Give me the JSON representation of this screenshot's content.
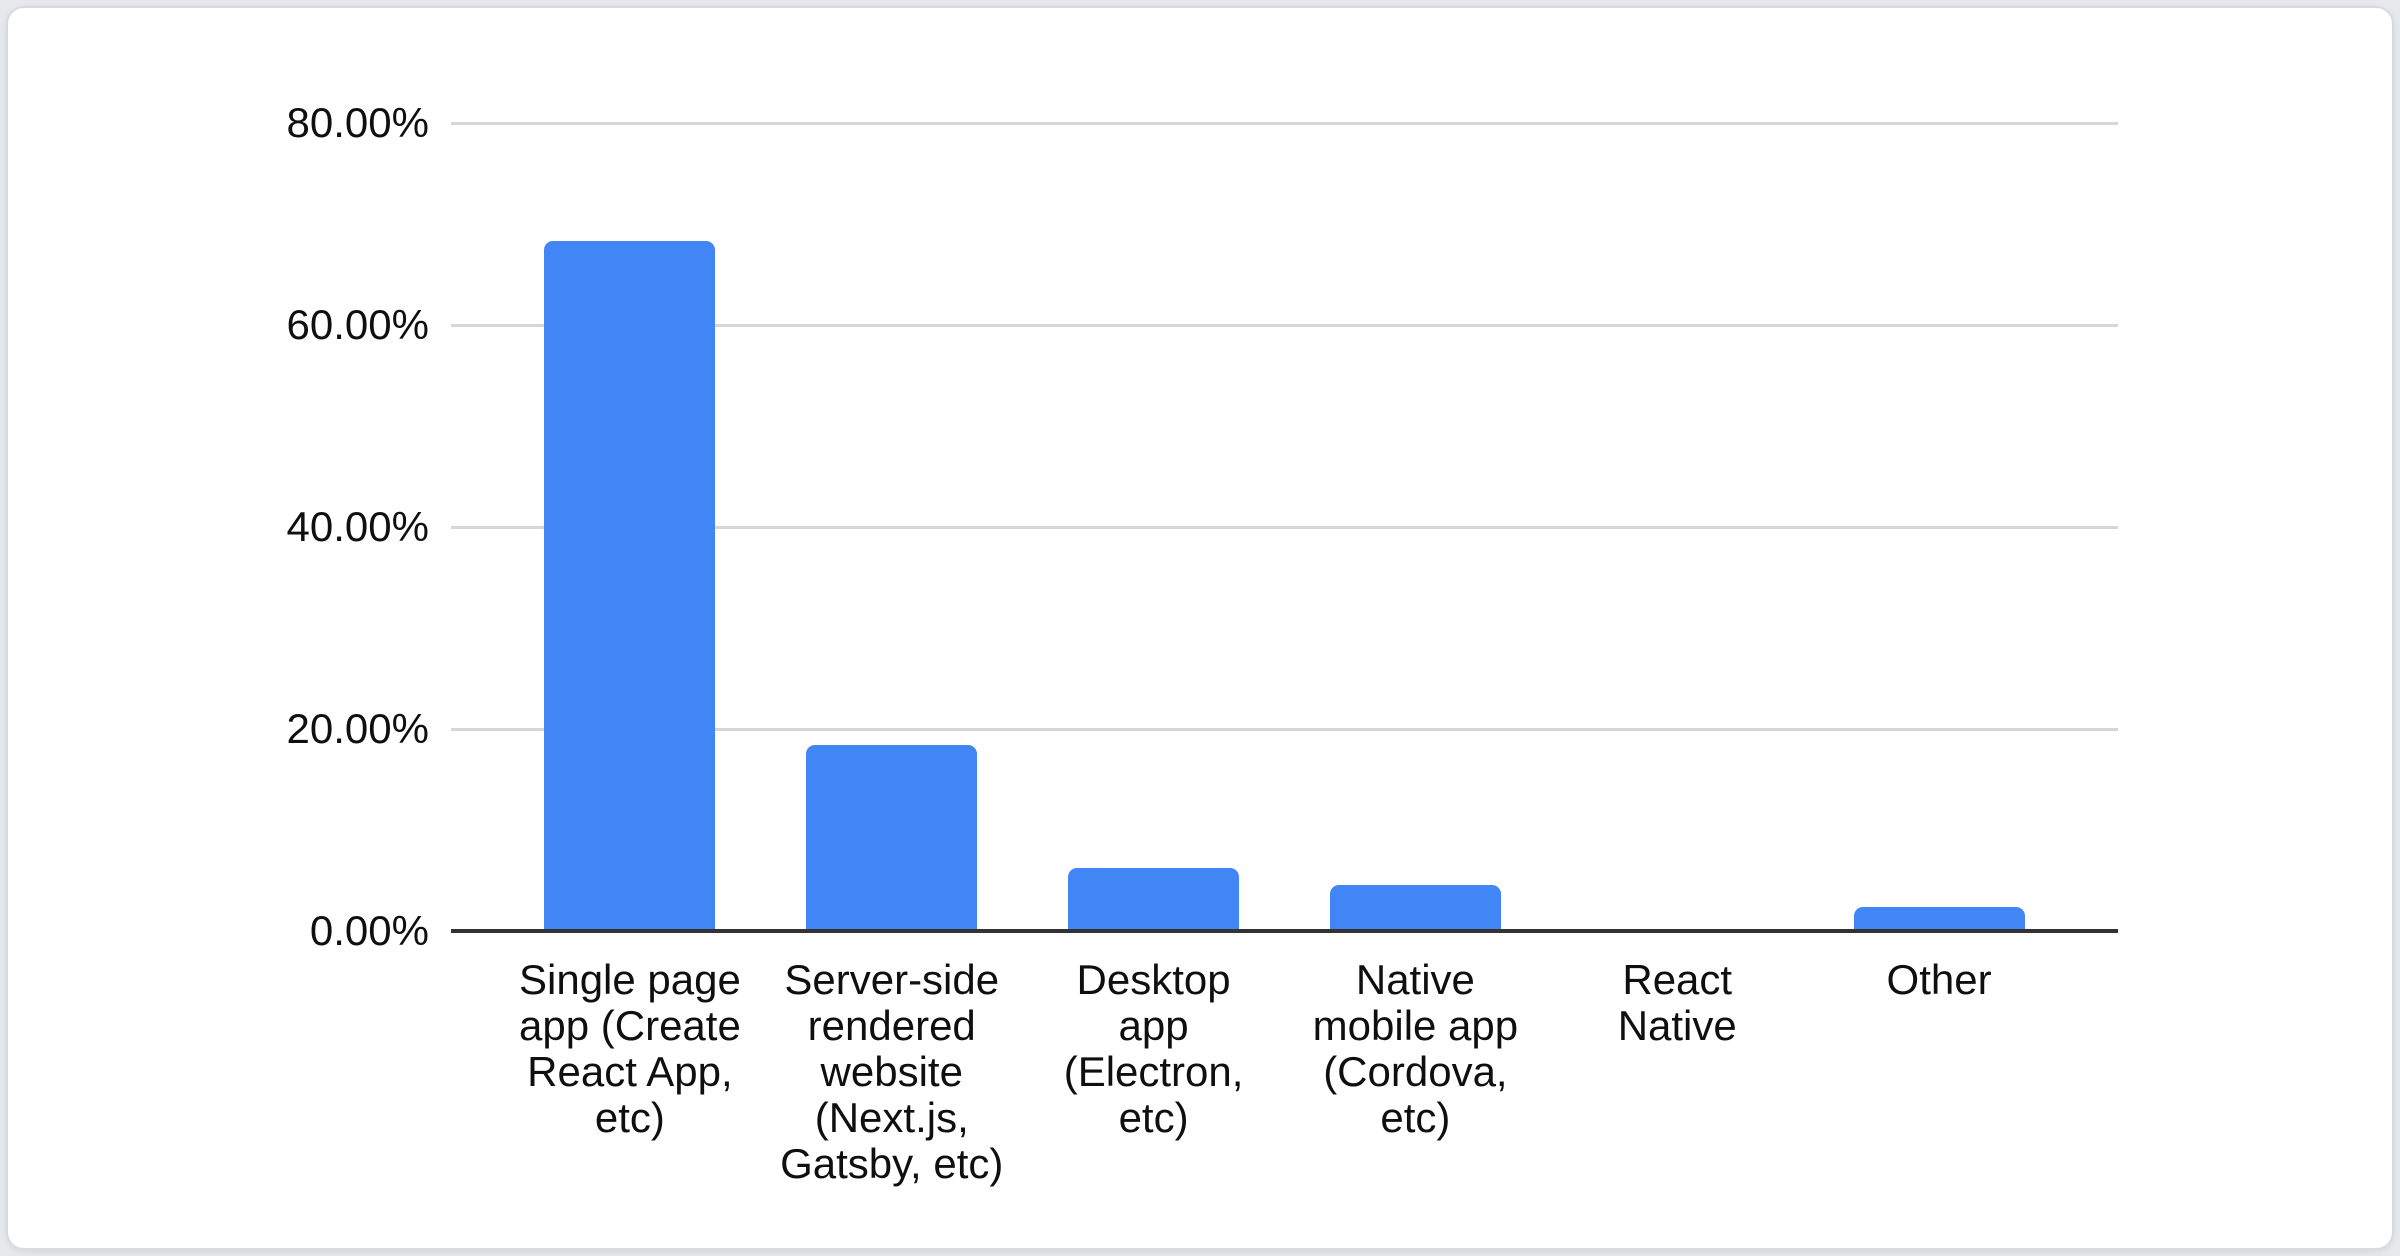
{
  "chart_data": {
    "type": "bar",
    "title": "",
    "xlabel": "",
    "ylabel": "",
    "unit": "%",
    "categories": [
      "Single page app (Create React App, etc)",
      "Server-side rendered website (Next.js, Gatsby, etc)",
      "Desktop app (Electron, etc)",
      "Native mobile app (Cordova, etc)",
      "React Native",
      "Other"
    ],
    "category_tick_labels": [
      "Single page\napp (Create\nReact App,\netc)",
      "Server-side\nrendered\nwebsite\n(Next.js,\nGatsby, etc)",
      "Desktop\napp\n(Electron,\netc)",
      "Native\nmobile app\n(Cordova,\netc)",
      "React\nNative",
      "Other"
    ],
    "values": [
      68.3,
      18.4,
      6.2,
      4.6,
      0,
      2.4
    ],
    "ylim": [
      0,
      80
    ],
    "y_ticks": [
      {
        "label": "80.00%",
        "value": 80
      },
      {
        "label": "60.00%",
        "value": 60
      },
      {
        "label": "40.00%",
        "value": 40
      },
      {
        "label": "20.00%",
        "value": 20
      },
      {
        "label": "0.00%",
        "value": 0
      }
    ],
    "grid": true,
    "legend": "none",
    "colors": {
      "bar": "#4285F4",
      "gridline": "#d6d6d6",
      "axis_line": "#333333",
      "text": "#0f0f0f",
      "card_background": "#ffffff",
      "card_border": "#d8dade",
      "page_background": "#e6e8eb"
    }
  }
}
